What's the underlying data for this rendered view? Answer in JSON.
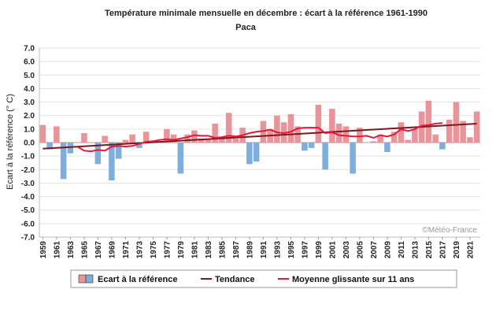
{
  "chart_data": {
    "type": "bar",
    "title": "Température minimale mensuelle en décembre : écart à la référence 1961-1990",
    "subtitle": "Paca",
    "ylabel": "Ecart à la référence (° C)",
    "credit": "©Météo-France",
    "ylim": [
      -7,
      7
    ],
    "yticks": [
      "7.0",
      "6.0",
      "5.0",
      "4.0",
      "3.0",
      "2.0",
      "1.0",
      "0.0",
      "-1.0",
      "-2.0",
      "-3.0",
      "-4.0",
      "-5.0",
      "-6.0",
      "-7.0"
    ],
    "grid": true,
    "legend_position": "bottom",
    "x": [
      1959,
      1960,
      1961,
      1962,
      1963,
      1964,
      1965,
      1966,
      1967,
      1968,
      1969,
      1970,
      1971,
      1972,
      1973,
      1974,
      1975,
      1976,
      1977,
      1978,
      1979,
      1980,
      1981,
      1982,
      1983,
      1984,
      1985,
      1986,
      1987,
      1988,
      1989,
      1990,
      1991,
      1992,
      1993,
      1994,
      1995,
      1996,
      1997,
      1998,
      1999,
      2000,
      2001,
      2002,
      2003,
      2004,
      2005,
      2006,
      2007,
      2008,
      2009,
      2010,
      2011,
      2012,
      2013,
      2014,
      2015,
      2016,
      2017,
      2018,
      2019,
      2020,
      2021,
      2022
    ],
    "xtick_labels": [
      "1959",
      "1961",
      "1963",
      "1965",
      "1967",
      "1969",
      "1971",
      "1973",
      "1975",
      "1977",
      "1979",
      "1981",
      "1983",
      "1985",
      "1987",
      "1989",
      "1991",
      "1993",
      "1995",
      "1997",
      "1999",
      "2001",
      "2003",
      "2005",
      "2007",
      "2009",
      "2011",
      "2013",
      "2015",
      "2017",
      "2019",
      "2021"
    ],
    "series": [
      {
        "name": "Ecart à la référence",
        "kind": "bar",
        "positive_color": "#e8949a",
        "negative_color": "#7eaedc",
        "values": [
          1.3,
          -0.5,
          1.2,
          -2.7,
          -0.8,
          0.0,
          0.7,
          0.0,
          -1.6,
          0.5,
          -2.8,
          -1.2,
          0.2,
          0.6,
          -0.4,
          0.8,
          0.0,
          0.1,
          1.0,
          0.6,
          -2.3,
          0.6,
          0.9,
          0.3,
          0.2,
          1.4,
          0.4,
          2.2,
          0.3,
          1.1,
          -1.6,
          -1.4,
          1.6,
          1.0,
          2.0,
          1.5,
          2.1,
          1.2,
          -0.6,
          -0.4,
          2.8,
          -2.0,
          2.5,
          1.4,
          1.2,
          -2.3,
          1.1,
          0.0,
          0.1,
          0.6,
          -0.7,
          0.8,
          1.5,
          0.2,
          1.0,
          2.3,
          3.1,
          0.6,
          -0.5,
          1.7,
          3.0,
          1.6,
          0.4,
          2.3
        ]
      },
      {
        "name": "Tendance",
        "kind": "line",
        "color": "#7a1a1a",
        "x": [
          1959,
          2022
        ],
        "values": [
          -0.45,
          1.4
        ]
      },
      {
        "name": "Moyenne glissante sur 11 ans",
        "kind": "line",
        "color": "#e8173a",
        "x": [
          1964,
          1965,
          1966,
          1967,
          1968,
          1969,
          1970,
          1971,
          1972,
          1973,
          1974,
          1975,
          1976,
          1977,
          1978,
          1979,
          1980,
          1981,
          1982,
          1983,
          1984,
          1985,
          1986,
          1987,
          1988,
          1989,
          1990,
          1991,
          1992,
          1993,
          1994,
          1995,
          1996,
          1997,
          1998,
          1999,
          2000,
          2001,
          2002,
          2003,
          2004,
          2005,
          2006,
          2007,
          2008,
          2009,
          2010,
          2011,
          2012,
          2013,
          2014,
          2015,
          2016,
          2017
        ],
        "values": [
          -0.3,
          -0.6,
          -0.65,
          -0.55,
          -0.6,
          -0.3,
          -0.25,
          -0.3,
          -0.25,
          -0.1,
          0.05,
          0.1,
          0.2,
          0.25,
          0.2,
          0.3,
          0.4,
          0.55,
          0.5,
          0.5,
          0.35,
          0.4,
          0.5,
          0.45,
          0.55,
          0.7,
          0.8,
          0.85,
          0.95,
          0.75,
          0.7,
          0.8,
          1.05,
          1.1,
          1.1,
          1.1,
          0.7,
          0.75,
          0.55,
          0.5,
          0.45,
          0.45,
          0.5,
          0.35,
          0.55,
          0.45,
          0.6,
          1.0,
          0.85,
          1.0,
          1.25,
          1.3,
          1.4,
          1.45
        ]
      }
    ]
  }
}
